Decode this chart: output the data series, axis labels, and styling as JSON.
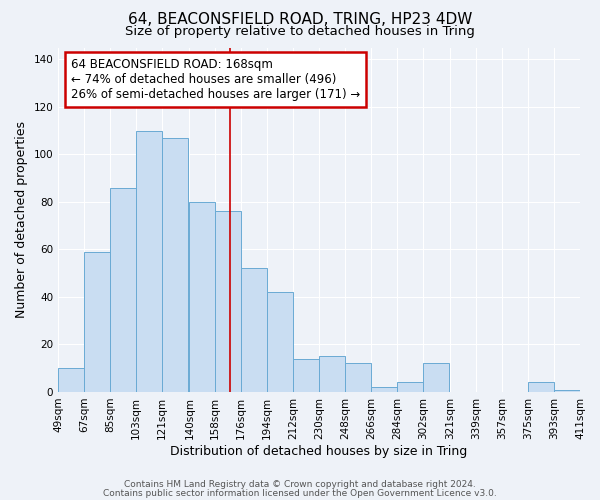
{
  "title": "64, BEACONSFIELD ROAD, TRING, HP23 4DW",
  "subtitle": "Size of property relative to detached houses in Tring",
  "xlabel": "Distribution of detached houses by size in Tring",
  "ylabel": "Number of detached properties",
  "bar_left_edges": [
    49,
    67,
    85,
    103,
    121,
    140,
    158,
    176,
    194,
    212,
    230,
    248,
    266,
    284,
    302,
    321,
    339,
    357,
    375,
    393
  ],
  "bar_heights": [
    10,
    59,
    86,
    110,
    107,
    80,
    76,
    52,
    42,
    14,
    15,
    12,
    2,
    4,
    12,
    0,
    0,
    0,
    4,
    1
  ],
  "bin_width": 18,
  "tick_labels": [
    "49sqm",
    "67sqm",
    "85sqm",
    "103sqm",
    "121sqm",
    "140sqm",
    "158sqm",
    "176sqm",
    "194sqm",
    "212sqm",
    "230sqm",
    "248sqm",
    "266sqm",
    "284sqm",
    "302sqm",
    "321sqm",
    "339sqm",
    "357sqm",
    "375sqm",
    "393sqm",
    "411sqm"
  ],
  "bar_color": "#c9ddf2",
  "bar_edge_color": "#6aaad4",
  "property_line_x": 168,
  "annotation_title": "64 BEACONSFIELD ROAD: 168sqm",
  "annotation_line1": "← 74% of detached houses are smaller (496)",
  "annotation_line2": "26% of semi-detached houses are larger (171) →",
  "annotation_box_color": "#ffffff",
  "annotation_box_edge_color": "#cc0000",
  "vline_color": "#cc0000",
  "ylim": [
    0,
    145
  ],
  "yticks": [
    0,
    20,
    40,
    60,
    80,
    100,
    120,
    140
  ],
  "footer1": "Contains HM Land Registry data © Crown copyright and database right 2024.",
  "footer2": "Contains public sector information licensed under the Open Government Licence v3.0.",
  "background_color": "#eef2f8",
  "grid_color": "#ffffff",
  "title_fontsize": 11,
  "subtitle_fontsize": 9.5,
  "axis_label_fontsize": 9,
  "tick_fontsize": 7.5,
  "annotation_fontsize": 8.5,
  "footer_fontsize": 6.5
}
